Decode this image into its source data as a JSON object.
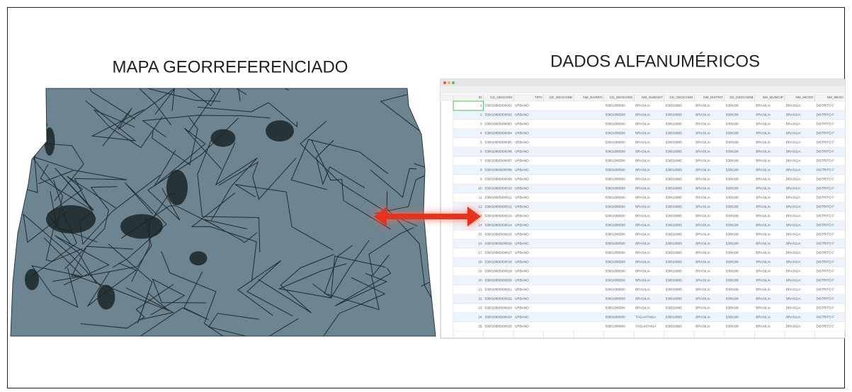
{
  "titles": {
    "left": "MAPA GEORREFERENCIADO",
    "right": "DADOS ALFANUMÉRICOS"
  },
  "table": {
    "header": [
      "ID",
      "CD_GEOCODI",
      "TIPO",
      "CD_GEOCODB",
      "NM_BAIRRO",
      "CD_GEOCODS",
      "NM_SUBDIST",
      "CD_GEOCODD",
      "NM_DISTRIT",
      "CD_GEOCODM",
      "NM_MUNICIP",
      "NM_MICRO",
      "NM_MESO"
    ],
    "rows": [
      [
        "1",
        "530010805000001",
        "URBANO",
        null,
        null,
        "53001080500",
        "BRASILIA",
        "530010805",
        "BRASILIA",
        "5300108",
        "BRASILIA",
        "BRASILIA",
        "DISTRITO F"
      ],
      [
        "2",
        "530010805000002",
        "URBANO",
        null,
        null,
        "53001080500",
        "BRASILIA",
        "530010805",
        "BRASILIA",
        "5300108",
        "BRASILIA",
        "BRASILIA",
        "DISTRITO F"
      ],
      [
        "3",
        "530010805000003",
        "URBANO",
        null,
        null,
        "53001080500",
        "BRASILIA",
        "530010805",
        "BRASILIA",
        "5300108",
        "BRASILIA",
        "BRASILIA",
        "DISTRITO F"
      ],
      [
        "4",
        "530010805000004",
        "URBANO",
        null,
        null,
        "53001080500",
        "BRASILIA",
        "530010805",
        "BRASILIA",
        "5300108",
        "BRASILIA",
        "BRASILIA",
        "DISTRITO F"
      ],
      [
        "5",
        "530010805000005",
        "URBANO",
        null,
        null,
        "53001080500",
        "BRASILIA",
        "530010805",
        "BRASILIA",
        "5300108",
        "BRASILIA",
        "BRASILIA",
        "DISTRITO F"
      ],
      [
        "6",
        "530010805000006",
        "URBANO",
        null,
        null,
        "53001080500",
        "BRASILIA",
        "530010805",
        "BRASILIA",
        "5300108",
        "BRASILIA",
        "BRASILIA",
        "DISTRITO F"
      ],
      [
        "7",
        "530010805000007",
        "URBANO",
        null,
        null,
        "53001080500",
        "BRASILIA",
        "530010805",
        "BRASILIA",
        "5300108",
        "BRASILIA",
        "BRASILIA",
        "DISTRITO F"
      ],
      [
        "8",
        "530010805000008",
        "URBANO",
        null,
        null,
        "53001080500",
        "BRASILIA",
        "530010805",
        "BRASILIA",
        "5300108",
        "BRASILIA",
        "BRASILIA",
        "DISTRITO F"
      ],
      [
        "9",
        "530010805000009",
        "URBANO",
        null,
        null,
        "53001080500",
        "BRASILIA",
        "530010805",
        "BRASILIA",
        "5300108",
        "BRASILIA",
        "BRASILIA",
        "DISTRITO F"
      ],
      [
        "10",
        "530010805000010",
        "URBANO",
        null,
        null,
        "53001080500",
        "BRASILIA",
        "530010805",
        "BRASILIA",
        "5300108",
        "BRASILIA",
        "BRASILIA",
        "DISTRITO F"
      ],
      [
        "11",
        "530010805000011",
        "URBANO",
        null,
        null,
        "53001080500",
        "BRASILIA",
        "530010805",
        "BRASILIA",
        "5300108",
        "BRASILIA",
        "BRASILIA",
        "DISTRITO F"
      ],
      [
        "12",
        "530010805000012",
        "URBANO",
        null,
        null,
        "53001080500",
        "BRASILIA",
        "530010805",
        "BRASILIA",
        "5300108",
        "BRASILIA",
        "BRASILIA",
        "DISTRITO F"
      ],
      [
        "13",
        "530010805000013",
        "URBANO",
        null,
        null,
        "53001080500",
        "BRASILIA",
        "530010805",
        "BRASILIA",
        "5300108",
        "BRASILIA",
        "BRASILIA",
        "DISTRITO F"
      ],
      [
        "14",
        "530010805000014",
        "URBANO",
        null,
        null,
        "53001080500",
        "BRASILIA",
        "530010805",
        "BRASILIA",
        "5300108",
        "BRASILIA",
        "BRASILIA",
        "DISTRITO F"
      ],
      [
        "15",
        "530010805000015",
        "URBANO",
        null,
        null,
        "53001080500",
        "BRASILIA",
        "530010805",
        "BRASILIA",
        "5300108",
        "BRASILIA",
        "BRASILIA",
        "DISTRITO F"
      ],
      [
        "16",
        "530010805000016",
        "URBANO",
        null,
        null,
        "53001080500",
        "BRASILIA",
        "530010805",
        "BRASILIA",
        "5300108",
        "BRASILIA",
        "BRASILIA",
        "DISTRITO F"
      ],
      [
        "17",
        "530010805000017",
        "URBANO",
        null,
        null,
        "53001080500",
        "BRASILIA",
        "530010805",
        "BRASILIA",
        "5300108",
        "BRASILIA",
        "BRASILIA",
        "DISTRITO F"
      ],
      [
        "18",
        "530010805000018",
        "URBANO",
        null,
        null,
        "53001080500",
        "BRASILIA",
        "530010805",
        "BRASILIA",
        "5300108",
        "BRASILIA",
        "BRASILIA",
        "DISTRITO F"
      ],
      [
        "19",
        "530010805000019",
        "URBANO",
        null,
        null,
        "53001080500",
        "BRASILIA",
        "530010805",
        "BRASILIA",
        "5300108",
        "BRASILIA",
        "BRASILIA",
        "DISTRITO F"
      ],
      [
        "20",
        "530010805000020",
        "URBANO",
        null,
        null,
        "53001080500",
        "BRASILIA",
        "530010805",
        "BRASILIA",
        "5300108",
        "BRASILIA",
        "BRASILIA",
        "DISTRITO F"
      ],
      [
        "21",
        "530010805000021",
        "URBANO",
        null,
        null,
        "53001080500",
        "BRASILIA",
        "530010805",
        "BRASILIA",
        "5300108",
        "BRASILIA",
        "BRASILIA",
        "DISTRITO F"
      ],
      [
        "22",
        "530010805000022",
        "URBANO",
        null,
        null,
        "53001080500",
        "BRASILIA",
        "530010805",
        "BRASILIA",
        "5300108",
        "BRASILIA",
        "BRASILIA",
        "DISTRITO F"
      ],
      [
        "23",
        "530010805000023",
        "URBANO",
        null,
        null,
        "53001080500",
        "BRASILIA",
        "530010805",
        "BRASILIA",
        "5300108",
        "BRASILIA",
        "BRASILIA",
        "DISTRITO F"
      ],
      [
        "24",
        "530010805000024",
        "URBANO",
        null,
        null,
        "53001080600",
        "TAGUATINGA",
        "530010805",
        "BRASILIA",
        "5300108",
        "BRASILIA",
        "BRASILIA",
        "DISTRITO F"
      ],
      [
        "25",
        "530010805000025",
        "URBANO",
        null,
        null,
        "53001080600",
        "TAGUATINGA",
        "530010805",
        "BRASILIA",
        "5300108",
        "BRASILIA",
        "BRASILIA",
        "DISTRITO F"
      ]
    ]
  }
}
